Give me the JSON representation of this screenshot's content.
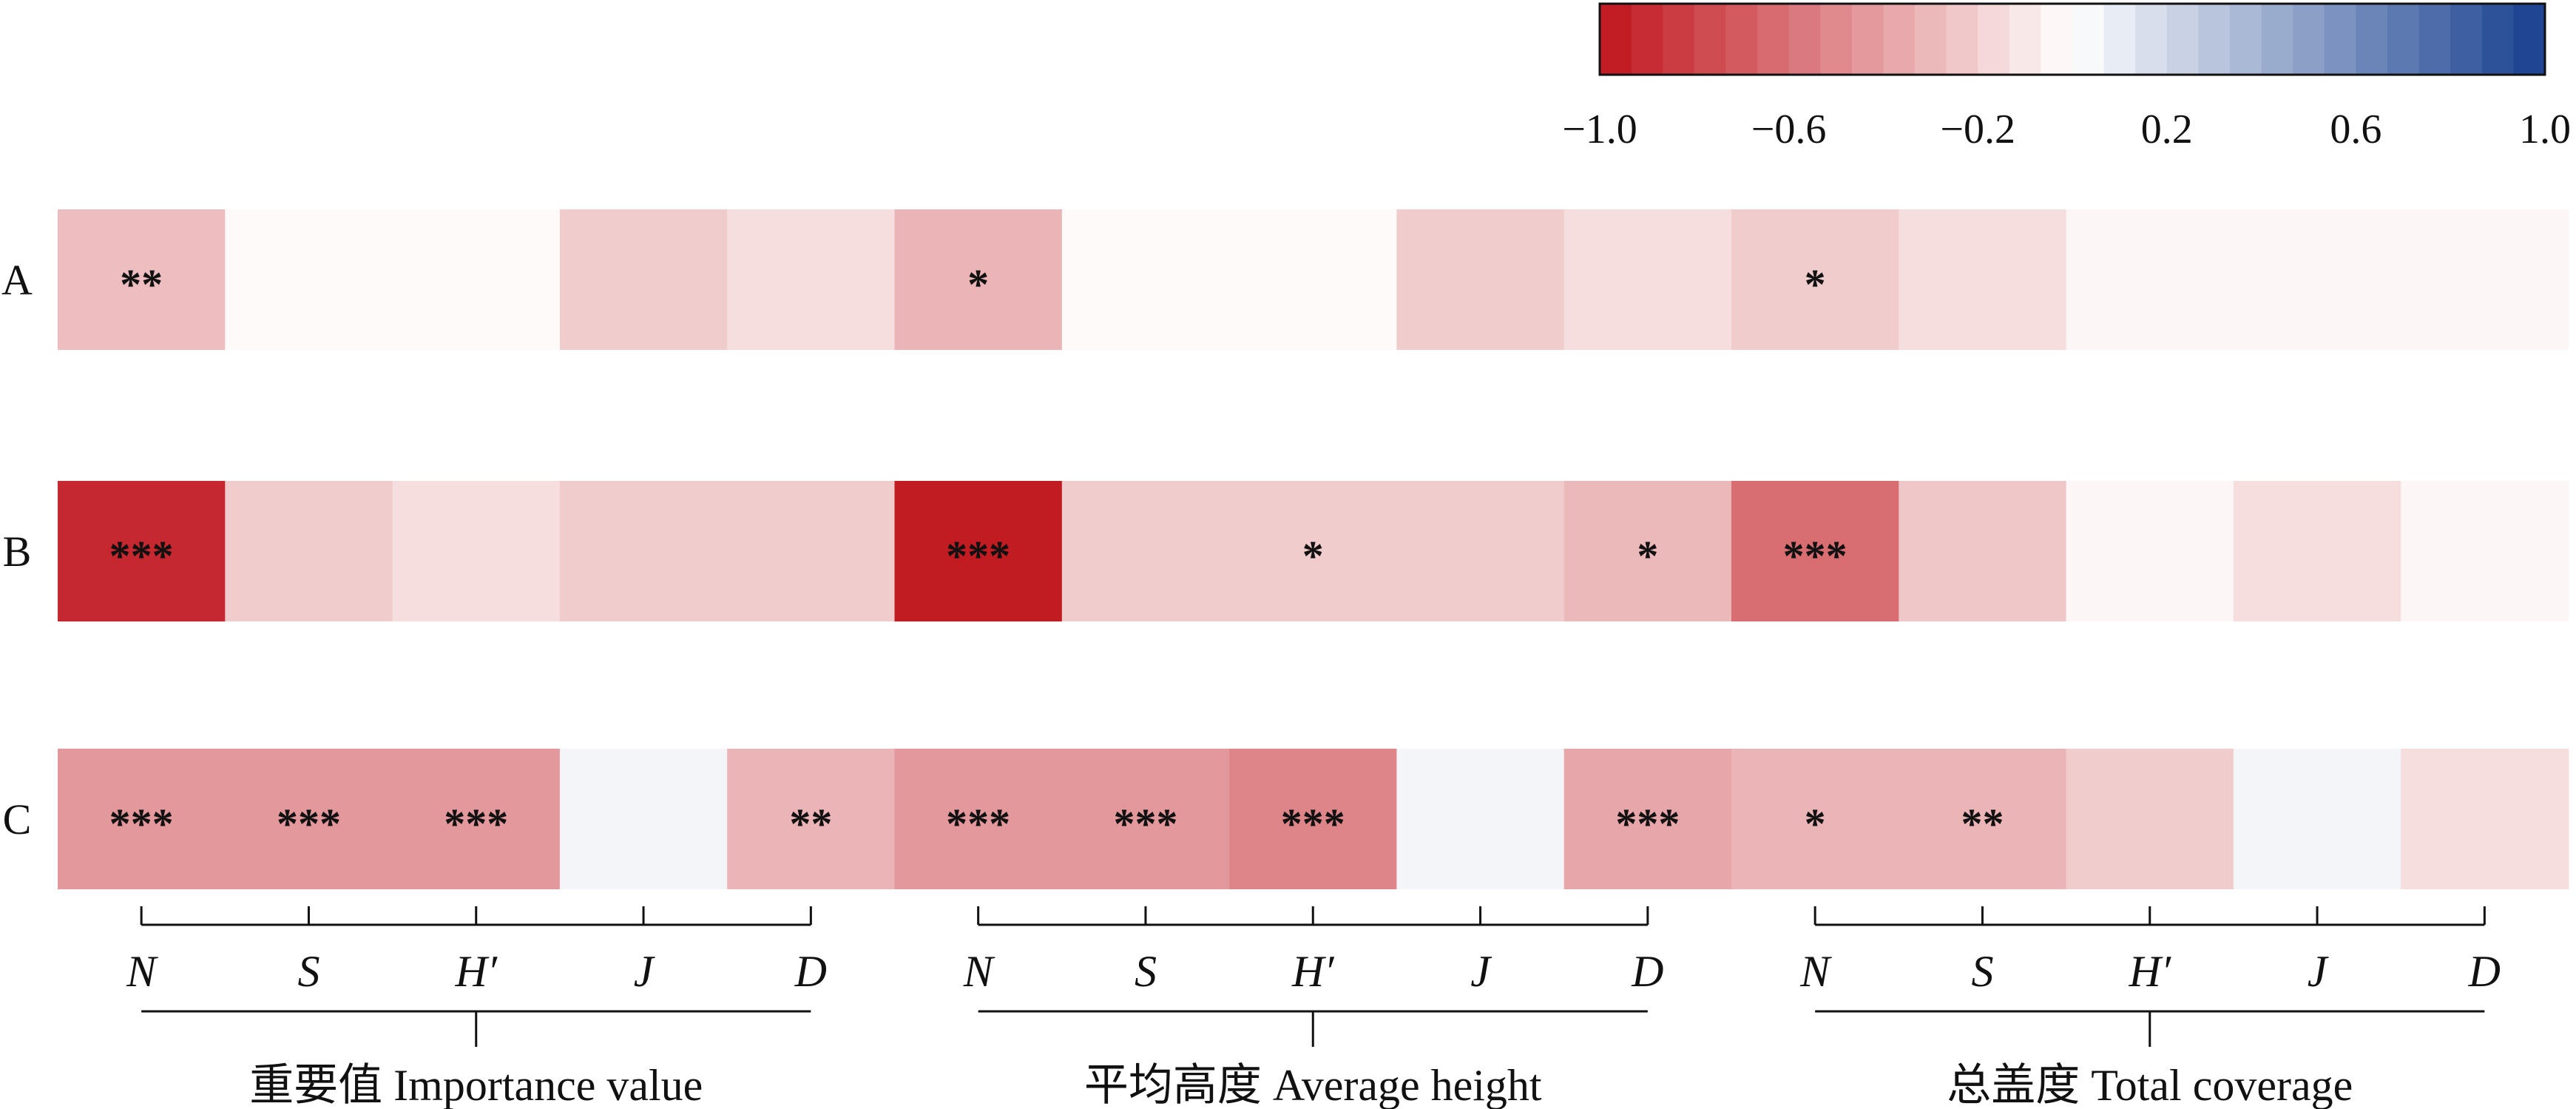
{
  "chart_data": {
    "type": "heatmap",
    "rows": [
      "A",
      "B",
      "C"
    ],
    "groups": [
      {
        "name": "重要值 Importance value",
        "metrics": [
          "N",
          "S",
          "H′",
          "J",
          "D"
        ]
      },
      {
        "name": "平均高度 Average height",
        "metrics": [
          "N",
          "S",
          "H′",
          "J",
          "D"
        ]
      },
      {
        "name": "总盖度 Total coverage",
        "metrics": [
          "N",
          "S",
          "H′",
          "J",
          "D"
        ]
      }
    ],
    "values": [
      [
        -0.28,
        -0.02,
        -0.02,
        -0.22,
        -0.14,
        -0.32,
        -0.02,
        -0.02,
        -0.22,
        -0.14,
        -0.22,
        -0.14,
        -0.04,
        -0.04,
        -0.04
      ],
      [
        -0.92,
        -0.22,
        -0.14,
        -0.22,
        -0.22,
        -0.97,
        -0.22,
        -0.22,
        -0.22,
        -0.3,
        -0.62,
        -0.24,
        -0.04,
        -0.14,
        -0.04
      ],
      [
        -0.44,
        -0.44,
        -0.44,
        0.05,
        -0.32,
        -0.44,
        -0.44,
        -0.52,
        0.05,
        -0.38,
        -0.32,
        -0.32,
        -0.22,
        0.05,
        -0.14
      ]
    ],
    "significance": [
      [
        "**",
        "",
        "",
        "",
        "",
        "*",
        "",
        "",
        "",
        "",
        "*",
        "",
        "",
        "",
        ""
      ],
      [
        "***",
        "",
        "",
        "",
        "",
        "***",
        "",
        "*",
        "",
        "*",
        "***",
        "",
        "",
        "",
        ""
      ],
      [
        "***",
        "***",
        "***",
        "",
        "**",
        "***",
        "***",
        "***",
        "",
        "***",
        "*",
        "**",
        "",
        "",
        ""
      ]
    ],
    "colorbar": {
      "range": [
        -1.0,
        1.0
      ],
      "ticks": [
        "−1.0",
        "−0.6",
        "−0.2",
        "0.2",
        "0.6",
        "1.0"
      ],
      "levels": 30,
      "colors": {
        "min": "#c0151c",
        "mid": "#ffffff",
        "max": "#173f8f"
      }
    }
  }
}
